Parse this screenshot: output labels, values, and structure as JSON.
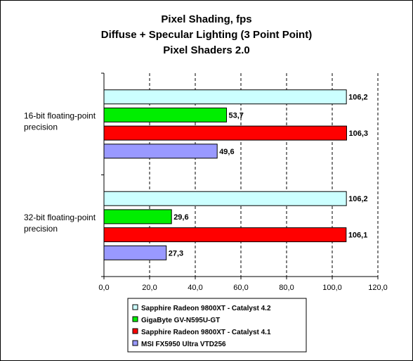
{
  "chart_data": {
    "type": "bar",
    "orientation": "horizontal",
    "title": [
      "Pixel Shading, fps",
      "Diffuse + Specular Lighting (3 Point Point)",
      "Pixel Shaders 2.0"
    ],
    "categories": [
      [
        "16-bit floating-point",
        "precision"
      ],
      [
        "32-bit floating-point",
        "precision"
      ]
    ],
    "series": [
      {
        "name": "Sapphire Radeon 9800XT - Catalyst 4.2",
        "values": [
          106.2,
          106.2
        ],
        "labels": [
          "106,2",
          "106,2"
        ],
        "color": "#ccffff"
      },
      {
        "name": "GigaByte GV-N595U-GT",
        "values": [
          53.7,
          29.6
        ],
        "labels": [
          "53,7",
          "29,6"
        ],
        "color": "#00ee00"
      },
      {
        "name": "Sapphire Radeon 9800XT - Catalyst 4.1",
        "values": [
          106.3,
          106.1
        ],
        "labels": [
          "106,3",
          "106,1"
        ],
        "color": "#ff0000"
      },
      {
        "name": "MSI FX5950 Ultra VTD256",
        "values": [
          49.6,
          27.3
        ],
        "labels": [
          "49,6",
          "27,3"
        ],
        "color": "#9999ff"
      }
    ],
    "xlim": [
      0,
      120
    ],
    "xticks": [
      0,
      20,
      40,
      60,
      80,
      100,
      120
    ],
    "xtick_labels": [
      "0,0",
      "20,0",
      "40,0",
      "60,0",
      "80,0",
      "100,0",
      "120,0"
    ],
    "grid": "vertical dashed",
    "legend": "bottom"
  }
}
